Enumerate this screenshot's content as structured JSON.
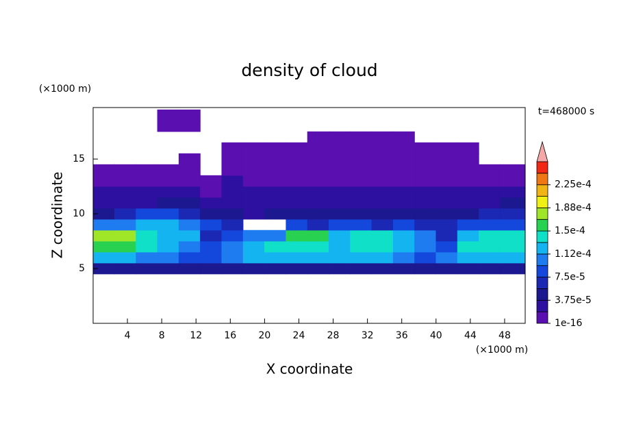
{
  "chart_data": {
    "type": "contour",
    "title": "density of cloud",
    "x_label": "X coordinate",
    "y_label": "Z coordinate",
    "x_unit": "(×1000 m)",
    "y_unit": "(×1000 m)",
    "annotation": "t=468000 s",
    "x": [
      1.25,
      3.75,
      6.25,
      8.75,
      11.25,
      13.75,
      16.25,
      18.75,
      21.25,
      23.75,
      26.25,
      28.75,
      31.25,
      33.75,
      36.25,
      38.75,
      41.25,
      43.75,
      46.25,
      48.75
    ],
    "y": [
      5,
      6,
      7,
      8,
      9,
      10,
      11,
      12,
      13,
      14,
      15,
      16,
      17,
      18,
      19
    ],
    "z": [
      [
        4.5e-05,
        4.5e-05,
        4.5e-05,
        4.5e-05,
        4.5e-05,
        4.5e-05,
        4.5e-05,
        4.5e-05,
        4.5e-05,
        4.5e-05,
        4.5e-05,
        4.5e-05,
        4.5e-05,
        4.5e-05,
        4.5e-05,
        4.5e-05,
        4.5e-05,
        4.5e-05,
        4.5e-05,
        4.5e-05
      ],
      [
        0.00012,
        0.00012,
        0.0001,
        0.0001,
        8e-05,
        8e-05,
        0.0001,
        0.00012,
        0.00012,
        0.00012,
        0.00012,
        0.00012,
        0.00012,
        0.00012,
        0.0001,
        8e-05,
        0.0001,
        0.00012,
        0.00012,
        0.00012
      ],
      [
        0.00016,
        0.00016,
        0.00014,
        0.00012,
        0.0001,
        8e-05,
        0.0001,
        0.00012,
        0.00014,
        0.00014,
        0.00014,
        0.00012,
        0.00014,
        0.00014,
        0.00012,
        0.0001,
        8e-05,
        0.00014,
        0.00014,
        0.00014
      ],
      [
        0.00018,
        0.00018,
        0.00014,
        0.00012,
        0.00012,
        6e-05,
        8e-05,
        0.0001,
        0.0001,
        0.00016,
        0.00016,
        0.00012,
        0.00014,
        0.00014,
        0.00012,
        0.0001,
        6e-05,
        0.00012,
        0.00014,
        0.00014
      ],
      [
        0.0001,
        0.0001,
        0.00012,
        0.00012,
        0.0001,
        8e-05,
        6e-05,
        null,
        null,
        8e-05,
        6e-05,
        8e-05,
        8e-05,
        6e-05,
        8e-05,
        6e-05,
        6e-05,
        8e-05,
        8e-05,
        8e-05
      ],
      [
        4.5e-05,
        6e-05,
        8e-05,
        8e-05,
        6e-05,
        4.5e-05,
        4.5e-05,
        2.5e-05,
        4.5e-05,
        4.5e-05,
        4.5e-05,
        4.5e-05,
        4.5e-05,
        4.5e-05,
        4.5e-05,
        4.5e-05,
        4.5e-05,
        4.5e-05,
        6e-05,
        6e-05
      ],
      [
        2.5e-05,
        2.5e-05,
        2.5e-05,
        4.5e-05,
        4.5e-05,
        2.5e-05,
        2.5e-05,
        2.5e-05,
        2.5e-05,
        2.5e-05,
        2.5e-05,
        2.5e-05,
        2.5e-05,
        2.5e-05,
        2.5e-05,
        2.5e-05,
        2.5e-05,
        2.5e-05,
        2.5e-05,
        4.5e-05
      ],
      [
        2.5e-05,
        2.5e-05,
        2.5e-05,
        2.5e-05,
        2.5e-05,
        1e-05,
        2.5e-05,
        2.5e-05,
        2.5e-05,
        2.5e-05,
        2.5e-05,
        2.5e-05,
        2.5e-05,
        2.5e-05,
        2.5e-05,
        2.5e-05,
        2.5e-05,
        2.5e-05,
        2.5e-05,
        2.5e-05
      ],
      [
        1e-05,
        1e-05,
        1e-05,
        1e-05,
        1e-05,
        1e-05,
        2.5e-05,
        1e-05,
        1e-05,
        1e-05,
        1e-05,
        1e-05,
        1e-05,
        1e-05,
        1e-05,
        1e-05,
        1e-05,
        1e-05,
        1e-05,
        1e-05
      ],
      [
        1e-05,
        1e-05,
        1e-05,
        1e-05,
        1e-05,
        null,
        1e-05,
        1e-05,
        1e-05,
        1e-05,
        1e-05,
        1e-05,
        1e-05,
        1e-05,
        1e-05,
        1e-05,
        1e-05,
        1e-05,
        1e-05,
        1e-05
      ],
      [
        null,
        null,
        null,
        null,
        1e-05,
        null,
        1e-05,
        1e-05,
        1e-05,
        1e-05,
        1e-05,
        1e-05,
        1e-05,
        1e-05,
        1e-05,
        1e-05,
        1e-05,
        1e-05,
        null,
        null
      ],
      [
        null,
        null,
        null,
        null,
        null,
        null,
        1e-05,
        1e-05,
        1e-05,
        1e-05,
        1e-05,
        1e-05,
        1e-05,
        1e-05,
        1e-05,
        1e-05,
        1e-05,
        1e-05,
        null,
        null
      ],
      [
        null,
        null,
        null,
        null,
        null,
        null,
        null,
        null,
        null,
        null,
        1e-05,
        1e-05,
        1e-05,
        1e-05,
        1e-05,
        null,
        null,
        null,
        null,
        null
      ],
      [
        null,
        null,
        null,
        1e-05,
        1e-05,
        null,
        null,
        null,
        null,
        null,
        null,
        null,
        null,
        null,
        null,
        null,
        null,
        null,
        null,
        null
      ],
      [
        null,
        null,
        null,
        1e-05,
        1e-05,
        null,
        null,
        null,
        null,
        null,
        null,
        null,
        null,
        null,
        null,
        null,
        null,
        null,
        null,
        null
      ]
    ],
    "xlim": [
      0,
      50.4
    ],
    "ylim": [
      0,
      19.7
    ],
    "xticks": [
      4,
      8,
      12,
      16,
      20,
      24,
      28,
      32,
      36,
      40,
      44,
      48
    ],
    "yticks": [
      5,
      10,
      15
    ],
    "levels": [
      1e-16,
      1.875e-05,
      3.75e-05,
      5.625e-05,
      7.5e-05,
      9.375e-05,
      0.0001125,
      0.00013125,
      0.00015,
      0.00016875,
      0.0001875,
      0.00020625,
      0.000225,
      0.00024375,
      0.0002625
    ],
    "colors": [
      "#5a10b0",
      "#2e10a0",
      "#1c1890",
      "#1a28b4",
      "#1448dc",
      "#1e7cf0",
      "#14b4f0",
      "#10e0c8",
      "#28d250",
      "#a0e628",
      "#f0f014",
      "#f0b414",
      "#f07814",
      "#f02814"
    ],
    "extend_color": "#f5a8a8",
    "cbar_ticks": [
      {
        "value": 1e-16,
        "label": "1e-16"
      },
      {
        "value": 3.75e-05,
        "label": "3.75e-5"
      },
      {
        "value": 7.5e-05,
        "label": "7.5e-5"
      },
      {
        "value": 0.0001125,
        "label": "1.12e-4"
      },
      {
        "value": 0.00015,
        "label": "1.5e-4"
      },
      {
        "value": 0.0001875,
        "label": "1.88e-4"
      },
      {
        "value": 0.000225,
        "label": "2.25e-4"
      }
    ]
  }
}
